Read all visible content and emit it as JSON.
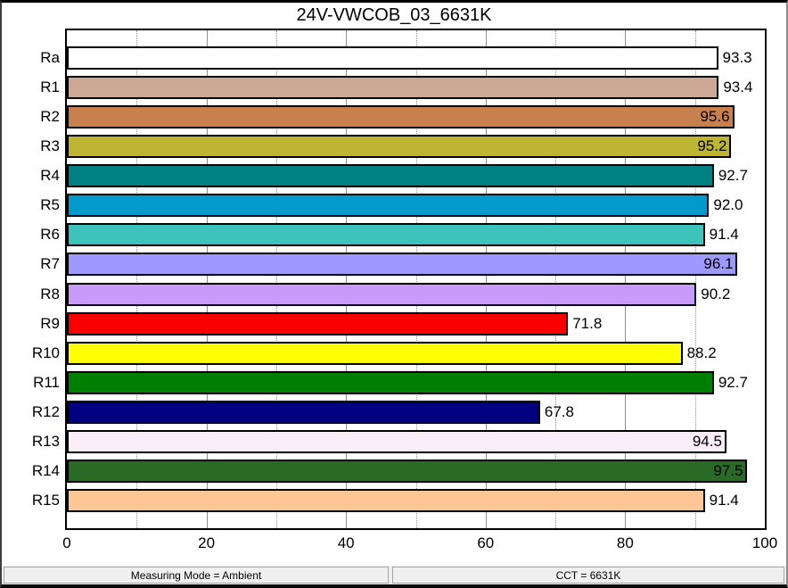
{
  "title": "24V-VWCOB_03_6631K",
  "chart_data": {
    "type": "bar",
    "orientation": "horizontal",
    "title": "24V-VWCOB_03_6631K",
    "categories": [
      "Ra",
      "R1",
      "R2",
      "R3",
      "R4",
      "R5",
      "R6",
      "R7",
      "R8",
      "R9",
      "R10",
      "R11",
      "R12",
      "R13",
      "R14",
      "R15"
    ],
    "values": [
      93.3,
      93.4,
      95.6,
      95.2,
      92.7,
      92.0,
      91.4,
      96.1,
      90.2,
      71.8,
      88.2,
      92.7,
      67.8,
      94.5,
      97.5,
      91.4
    ],
    "bar_colors": [
      "#FFFFFF",
      "#CDA897",
      "#C8814E",
      "#BDB431",
      "#008080",
      "#009ACD",
      "#3DC3BC",
      "#9E99FF",
      "#C89AFA",
      "#FB0000",
      "#FFFF00",
      "#008000",
      "#000080",
      "#FAEFF8",
      "#276B27",
      "#FCC795"
    ],
    "xlabel": "",
    "ylabel": "",
    "xlim": [
      0,
      100
    ],
    "x_ticks": [
      0,
      20,
      40,
      60,
      80,
      100
    ],
    "grid": {
      "solid_lines": [
        20,
        40,
        60,
        80
      ],
      "dotted_lines": [
        10,
        30,
        50,
        70,
        90
      ]
    },
    "value_label_decimals": 1,
    "value_label_inside_threshold": 94
  },
  "status_bar": {
    "measuring_mode": "Measuring Mode = Ambient",
    "cct": "CCT = 6631K"
  }
}
